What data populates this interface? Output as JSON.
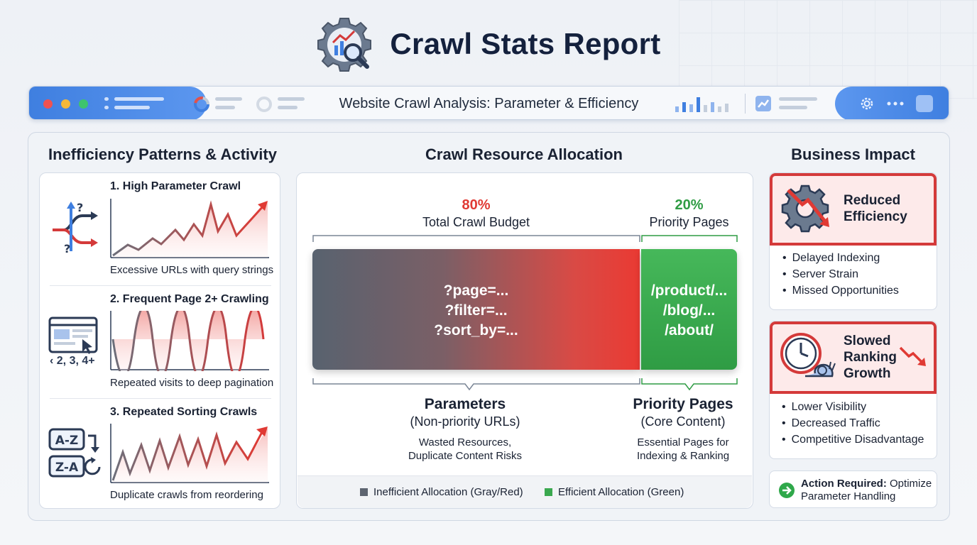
{
  "header": {
    "title": "Crawl Stats Report",
    "icon": "gear-chart-magnifier-icon"
  },
  "browser_bar": {
    "title": "Website Crawl Analysis: Parameter & Efficiency",
    "colors": {
      "accent": "#3f7fe0",
      "dot_red": "#f0524f",
      "dot_yellow": "#f5b83a",
      "dot_green": "#3ec46d"
    }
  },
  "left": {
    "title": "Inefficiency Patterns & Activity",
    "patterns": [
      {
        "title": "1. High Parameter Crawl",
        "caption": "Excessive URLs with query strings",
        "icon": "split-arrows-question-icon"
      },
      {
        "title": "2. Frequent Page 2+ Crawling",
        "caption": "Repeated visits to deep pagination",
        "icon": "browser-pagination-icon",
        "icon_label": "‹ 2, 3, 4+"
      },
      {
        "title": "3. Repeated Sorting Crawls",
        "caption": "Duplicate crawls from reordering",
        "icon": "sort-az-za-icon",
        "icon_labels": [
          "A-Z",
          "Z-A"
        ]
      }
    ]
  },
  "center": {
    "title": "Crawl Resource Allocation",
    "left_pct": "80%",
    "left_pct_label": "Total Crawl Budget",
    "right_pct": "20%",
    "right_pct_label": "Priority Pages",
    "left_bar_lines": [
      "?page=...",
      "?filter=...",
      "?sort_by=..."
    ],
    "right_bar_lines": [
      "/product/...",
      "/blog/...",
      "/about/"
    ],
    "left_head": "Parameters",
    "left_sub": "(Non-priority URLs)",
    "left_desc": [
      "Wasted Resources,",
      "Duplicate Content Risks"
    ],
    "right_head": "Priority Pages",
    "right_sub": "(Core Content)",
    "right_desc": [
      "Essential Pages for",
      "Indexing & Ranking"
    ],
    "legend": [
      {
        "label": "Inefficient Allocation (Gray/Red)",
        "color": "#5d6470"
      },
      {
        "label": "Efficient Allocation (Green)",
        "color": "#3aa84f"
      }
    ],
    "colors": {
      "red": "#e03a34",
      "green": "#2f9c44"
    }
  },
  "right": {
    "title": "Business Impact",
    "impacts": [
      {
        "title_lines": [
          "Reduced",
          "Efficiency"
        ],
        "icon": "gear-down-arrow-icon",
        "items": [
          "Delayed Indexing",
          "Server Strain",
          "Missed Opportunities"
        ]
      },
      {
        "title_lines": [
          "Slowed",
          "Ranking",
          "Growth"
        ],
        "icon": "clock-snail-icon",
        "items": [
          "Lower Visibility",
          "Decreased Traffic",
          "Competitive Disadvantage"
        ]
      }
    ],
    "action": {
      "bold": "Action Required:",
      "rest_line1": " Optimize",
      "line2": "Parameter Handling",
      "icon": "arrow-right-circle-icon"
    }
  }
}
